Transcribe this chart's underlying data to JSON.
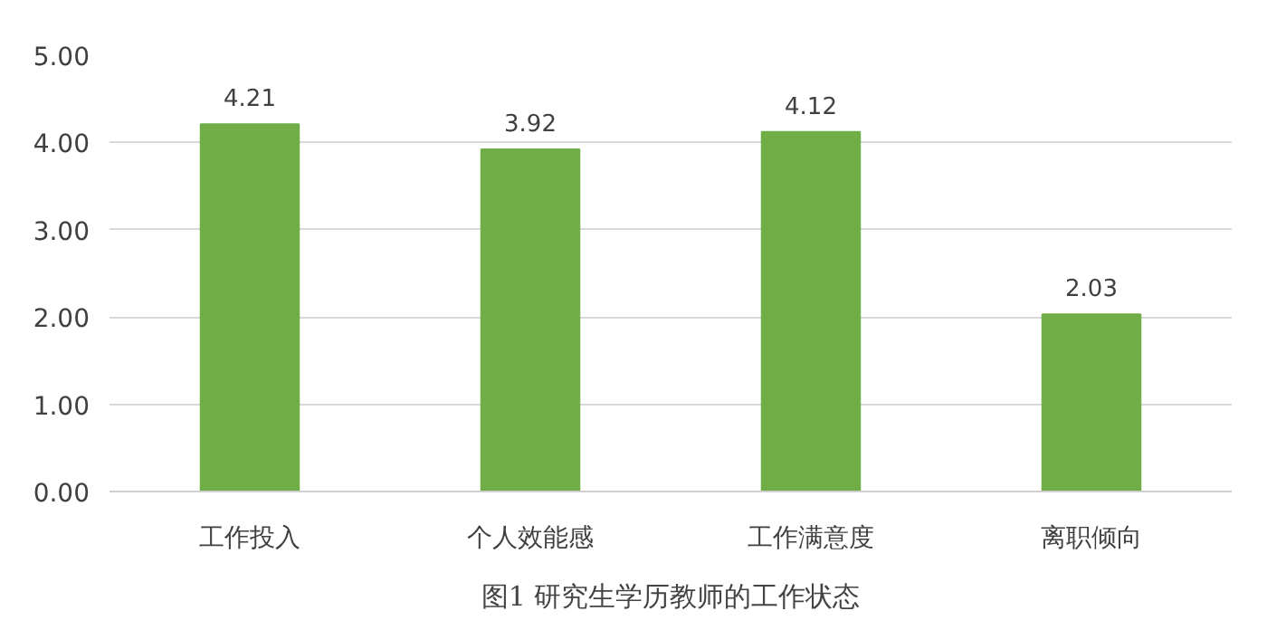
{
  "chart_data": {
    "type": "bar",
    "title": "图1 研究生学历教师的工作状态",
    "categories": [
      "工作投入",
      "个人效能感",
      "工作满意度",
      "离职倾向"
    ],
    "values": [
      4.21,
      3.92,
      4.12,
      2.03
    ],
    "color": "#70ad47",
    "ylim": [
      0,
      5
    ],
    "yticks": [
      {
        "value": 0,
        "label": "0.00"
      },
      {
        "value": 1,
        "label": "1.00"
      },
      {
        "value": 2,
        "label": "2.00"
      },
      {
        "value": 3,
        "label": "3.00"
      },
      {
        "value": 4,
        "label": "4.00"
      },
      {
        "value": 5,
        "label": "5.00"
      }
    ],
    "grid": "y",
    "data_labels": true
  }
}
